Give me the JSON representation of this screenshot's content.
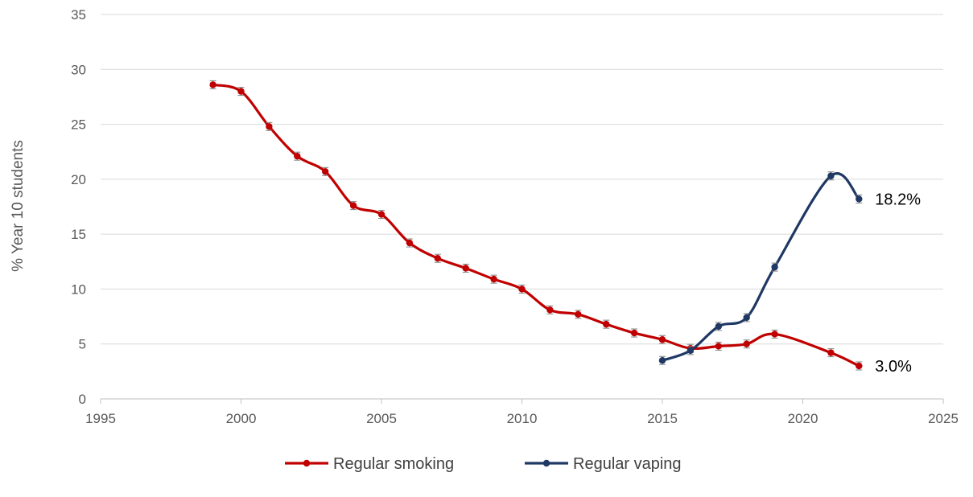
{
  "chart_data": {
    "type": "line",
    "title": "",
    "xlabel": "",
    "ylabel": "% Year 10 students",
    "xlim": [
      1995,
      2025
    ],
    "ylim": [
      0,
      35
    ],
    "x_ticks": [
      1995,
      2000,
      2005,
      2010,
      2015,
      2020,
      2025
    ],
    "y_ticks": [
      0,
      5,
      10,
      15,
      20,
      25,
      30,
      35
    ],
    "grid": "horizontal",
    "legend_position": "bottom",
    "series": [
      {
        "name": "Regular smoking",
        "color": "#c00000",
        "smooth": true,
        "error_bars": true,
        "x": [
          1999,
          2000,
          2001,
          2002,
          2003,
          2004,
          2005,
          2006,
          2007,
          2008,
          2009,
          2010,
          2011,
          2012,
          2013,
          2014,
          2015,
          2016,
          2017,
          2018,
          2019,
          2021,
          2022
        ],
        "y": [
          28.6,
          28.0,
          24.8,
          22.1,
          20.7,
          17.6,
          16.8,
          14.2,
          12.8,
          11.9,
          10.9,
          10.0,
          8.1,
          7.7,
          6.8,
          6.0,
          5.4,
          4.6,
          4.8,
          5.0,
          5.9,
          4.2,
          3.0
        ],
        "end_label": "3.0%"
      },
      {
        "name": "Regular vaping",
        "color": "#1f3864",
        "smooth": true,
        "error_bars": true,
        "x": [
          2015,
          2016,
          2017,
          2018,
          2019,
          2021,
          2022
        ],
        "y": [
          3.5,
          4.4,
          6.6,
          7.4,
          12.0,
          20.3,
          18.2
        ],
        "end_label": "18.2%"
      }
    ]
  }
}
